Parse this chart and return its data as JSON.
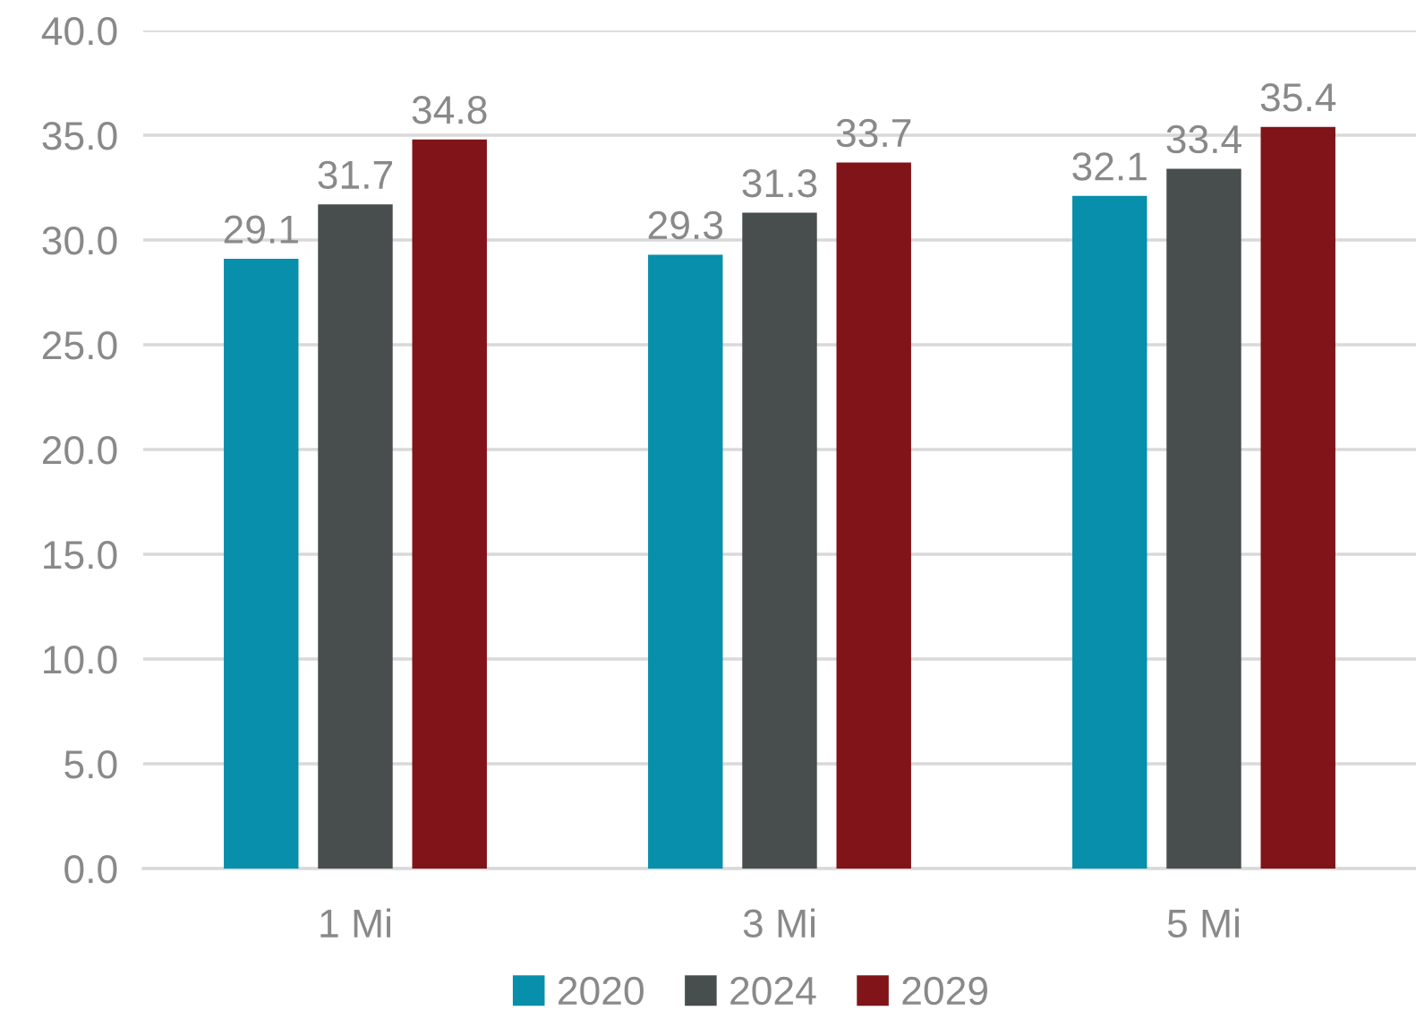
{
  "chart_data": {
    "type": "bar",
    "categories": [
      "1 Mi",
      "3 Mi",
      "5 Mi"
    ],
    "series": [
      {
        "name": "2020",
        "color": "#078fab",
        "values": [
          29.1,
          29.3,
          32.1
        ]
      },
      {
        "name": "2024",
        "color": "#484e4e",
        "values": [
          31.7,
          31.3,
          33.4
        ]
      },
      {
        "name": "2029",
        "color": "#801418",
        "values": [
          34.8,
          33.7,
          35.4
        ]
      }
    ],
    "ylim": [
      0,
      40
    ],
    "yticks": [
      {
        "value": 0,
        "label": "0.0"
      },
      {
        "value": 5,
        "label": "5.0"
      },
      {
        "value": 10,
        "label": "10.0"
      },
      {
        "value": 15,
        "label": "15.0"
      },
      {
        "value": 20,
        "label": "20.0"
      },
      {
        "value": 25,
        "label": "25.0"
      },
      {
        "value": 30,
        "label": "30.0"
      },
      {
        "value": 35,
        "label": "35.0"
      },
      {
        "value": 40,
        "label": "40.0"
      }
    ],
    "grid": "y",
    "legend": "bottom",
    "data_labels": true
  }
}
